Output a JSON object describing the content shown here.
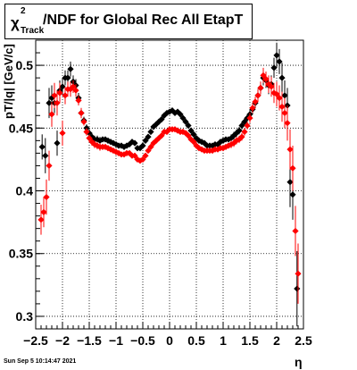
{
  "title": {
    "chi": "χ",
    "sup": "2",
    "sub": "Track",
    "rest": "/NDF for Global Rec All EtapT"
  },
  "timestamp": "Sun Sep  5 10:14:47 2021",
  "chart_data": {
    "type": "scatter",
    "xlabel": "η",
    "ylabel": "pT/|q| [GeV/c]",
    "xlim": [
      -2.5,
      2.5
    ],
    "ylim": [
      0.29,
      0.52
    ],
    "x_ticks": [
      "−2.5",
      "−2",
      "−1.5",
      "−1",
      "−0.5",
      "0",
      "0.5",
      "1",
      "1.5",
      "2",
      "2.5"
    ],
    "y_ticks": [
      "0.3",
      "0.35",
      "0.4",
      "0.45",
      "0.5"
    ],
    "grid": true,
    "colors": {
      "black_series": "#000000",
      "red_series": "#ff0000"
    },
    "series": [
      {
        "color": "black",
        "points": [
          [
            -2.38,
            0.435,
            0.01
          ],
          [
            -2.32,
            0.428,
            0.014
          ],
          [
            -2.25,
            0.47,
            0.012
          ],
          [
            -2.2,
            0.474,
            0.01
          ],
          [
            -2.15,
            0.47,
            0.008
          ],
          [
            -2.1,
            0.438,
            0.01
          ],
          [
            -2.05,
            0.48,
            0.008
          ],
          [
            -2.0,
            0.483,
            0.007
          ],
          [
            -1.95,
            0.49,
            0.006
          ],
          [
            -1.9,
            0.49,
            0.006
          ],
          [
            -1.85,
            0.497,
            0.006
          ],
          [
            -1.8,
            0.487,
            0.005
          ],
          [
            -1.75,
            0.484,
            0.005
          ],
          [
            -1.7,
            0.474,
            0.004
          ],
          [
            -1.65,
            0.462,
            0.004
          ],
          [
            -1.6,
            0.456,
            0.003
          ],
          [
            -1.55,
            0.45,
            0.003
          ],
          [
            -1.5,
            0.446,
            0.003
          ],
          [
            -1.45,
            0.443,
            0.003
          ],
          [
            -1.4,
            0.441,
            0.003
          ],
          [
            -1.35,
            0.441,
            0.003
          ],
          [
            -1.3,
            0.44,
            0.003
          ],
          [
            -1.25,
            0.441,
            0.002
          ],
          [
            -1.2,
            0.441,
            0.002
          ],
          [
            -1.15,
            0.44,
            0.002
          ],
          [
            -1.1,
            0.439,
            0.002
          ],
          [
            -1.05,
            0.438,
            0.002
          ],
          [
            -1.0,
            0.437,
            0.002
          ],
          [
            -0.95,
            0.436,
            0.002
          ],
          [
            -0.9,
            0.436,
            0.002
          ],
          [
            -0.85,
            0.435,
            0.002
          ],
          [
            -0.8,
            0.436,
            0.002
          ],
          [
            -0.75,
            0.437,
            0.002
          ],
          [
            -0.7,
            0.439,
            0.002
          ],
          [
            -0.65,
            0.438,
            0.002
          ],
          [
            -0.6,
            0.434,
            0.002
          ],
          [
            -0.55,
            0.434,
            0.002
          ],
          [
            -0.5,
            0.436,
            0.002
          ],
          [
            -0.45,
            0.44,
            0.002
          ],
          [
            -0.4,
            0.443,
            0.002
          ],
          [
            -0.35,
            0.447,
            0.002
          ],
          [
            -0.3,
            0.451,
            0.002
          ],
          [
            -0.25,
            0.453,
            0.002
          ],
          [
            -0.2,
            0.455,
            0.002
          ],
          [
            -0.15,
            0.457,
            0.002
          ],
          [
            -0.1,
            0.46,
            0.002
          ],
          [
            -0.05,
            0.462,
            0.002
          ],
          [
            0.0,
            0.463,
            0.002
          ],
          [
            0.05,
            0.464,
            0.002
          ],
          [
            0.1,
            0.462,
            0.002
          ],
          [
            0.15,
            0.463,
            0.002
          ],
          [
            0.2,
            0.461,
            0.002
          ],
          [
            0.25,
            0.458,
            0.002
          ],
          [
            0.3,
            0.455,
            0.002
          ],
          [
            0.35,
            0.452,
            0.002
          ],
          [
            0.4,
            0.448,
            0.002
          ],
          [
            0.45,
            0.445,
            0.002
          ],
          [
            0.5,
            0.442,
            0.002
          ],
          [
            0.55,
            0.44,
            0.002
          ],
          [
            0.6,
            0.439,
            0.002
          ],
          [
            0.65,
            0.438,
            0.002
          ],
          [
            0.7,
            0.436,
            0.002
          ],
          [
            0.75,
            0.436,
            0.002
          ],
          [
            0.8,
            0.436,
            0.002
          ],
          [
            0.85,
            0.437,
            0.002
          ],
          [
            0.9,
            0.437,
            0.002
          ],
          [
            0.95,
            0.439,
            0.002
          ],
          [
            1.0,
            0.44,
            0.002
          ],
          [
            1.05,
            0.441,
            0.002
          ],
          [
            1.1,
            0.441,
            0.002
          ],
          [
            1.15,
            0.442,
            0.003
          ],
          [
            1.2,
            0.444,
            0.003
          ],
          [
            1.25,
            0.446,
            0.003
          ],
          [
            1.3,
            0.448,
            0.003
          ],
          [
            1.35,
            0.452,
            0.003
          ],
          [
            1.4,
            0.455,
            0.003
          ],
          [
            1.45,
            0.458,
            0.003
          ],
          [
            1.5,
            0.461,
            0.004
          ],
          [
            1.55,
            0.465,
            0.004
          ],
          [
            1.6,
            0.47,
            0.004
          ],
          [
            1.65,
            0.476,
            0.005
          ],
          [
            1.7,
            0.482,
            0.005
          ],
          [
            1.75,
            0.49,
            0.006
          ],
          [
            1.8,
            0.488,
            0.006
          ],
          [
            1.85,
            0.484,
            0.007
          ],
          [
            1.9,
            0.485,
            0.007
          ],
          [
            1.95,
            0.498,
            0.008
          ],
          [
            2.0,
            0.508,
            0.01
          ],
          [
            2.05,
            0.503,
            0.01
          ],
          [
            2.1,
            0.49,
            0.012
          ],
          [
            2.15,
            0.476,
            0.012
          ],
          [
            2.2,
            0.468,
            0.014
          ],
          [
            2.25,
            0.407,
            0.02
          ],
          [
            2.3,
            0.397,
            0.02
          ],
          [
            2.38,
            0.322,
            0.03
          ]
        ]
      },
      {
        "color": "red",
        "points": [
          [
            -2.4,
            0.377,
            0.012
          ],
          [
            -2.35,
            0.383,
            0.012
          ],
          [
            -2.3,
            0.395,
            0.014
          ],
          [
            -2.25,
            0.42,
            0.012
          ],
          [
            -2.2,
            0.461,
            0.01
          ],
          [
            -2.15,
            0.476,
            0.01
          ],
          [
            -2.1,
            0.47,
            0.01
          ],
          [
            -2.05,
            0.478,
            0.008
          ],
          [
            -2.0,
            0.446,
            0.01
          ],
          [
            -1.95,
            0.476,
            0.007
          ],
          [
            -1.9,
            0.481,
            0.006
          ],
          [
            -1.85,
            0.481,
            0.006
          ],
          [
            -1.8,
            0.483,
            0.005
          ],
          [
            -1.75,
            0.48,
            0.005
          ],
          [
            -1.7,
            0.472,
            0.004
          ],
          [
            -1.65,
            0.462,
            0.004
          ],
          [
            -1.6,
            0.455,
            0.003
          ],
          [
            -1.55,
            0.447,
            0.003
          ],
          [
            -1.5,
            0.442,
            0.003
          ],
          [
            -1.45,
            0.439,
            0.003
          ],
          [
            -1.4,
            0.437,
            0.003
          ],
          [
            -1.35,
            0.436,
            0.003
          ],
          [
            -1.3,
            0.435,
            0.003
          ],
          [
            -1.25,
            0.435,
            0.002
          ],
          [
            -1.2,
            0.435,
            0.002
          ],
          [
            -1.15,
            0.434,
            0.002
          ],
          [
            -1.1,
            0.433,
            0.002
          ],
          [
            -1.05,
            0.432,
            0.002
          ],
          [
            -1.0,
            0.431,
            0.002
          ],
          [
            -0.95,
            0.43,
            0.002
          ],
          [
            -0.9,
            0.429,
            0.002
          ],
          [
            -0.85,
            0.429,
            0.002
          ],
          [
            -0.8,
            0.43,
            0.002
          ],
          [
            -0.75,
            0.43,
            0.002
          ],
          [
            -0.7,
            0.428,
            0.002
          ],
          [
            -0.65,
            0.428,
            0.002
          ],
          [
            -0.6,
            0.425,
            0.002
          ],
          [
            -0.55,
            0.424,
            0.002
          ],
          [
            -0.5,
            0.425,
            0.002
          ],
          [
            -0.45,
            0.428,
            0.002
          ],
          [
            -0.4,
            0.432,
            0.002
          ],
          [
            -0.35,
            0.435,
            0.002
          ],
          [
            -0.3,
            0.438,
            0.002
          ],
          [
            -0.25,
            0.44,
            0.002
          ],
          [
            -0.2,
            0.442,
            0.002
          ],
          [
            -0.15,
            0.444,
            0.002
          ],
          [
            -0.1,
            0.447,
            0.002
          ],
          [
            -0.05,
            0.447,
            0.002
          ],
          [
            0.0,
            0.449,
            0.002
          ],
          [
            0.05,
            0.449,
            0.002
          ],
          [
            0.1,
            0.449,
            0.002
          ],
          [
            0.15,
            0.448,
            0.002
          ],
          [
            0.2,
            0.447,
            0.002
          ],
          [
            0.25,
            0.447,
            0.002
          ],
          [
            0.3,
            0.446,
            0.002
          ],
          [
            0.35,
            0.444,
            0.002
          ],
          [
            0.4,
            0.441,
            0.002
          ],
          [
            0.45,
            0.439,
            0.002
          ],
          [
            0.5,
            0.436,
            0.002
          ],
          [
            0.55,
            0.434,
            0.002
          ],
          [
            0.6,
            0.433,
            0.002
          ],
          [
            0.65,
            0.432,
            0.002
          ],
          [
            0.7,
            0.432,
            0.002
          ],
          [
            0.75,
            0.432,
            0.002
          ],
          [
            0.8,
            0.432,
            0.002
          ],
          [
            0.85,
            0.433,
            0.002
          ],
          [
            0.9,
            0.433,
            0.002
          ],
          [
            0.95,
            0.434,
            0.002
          ],
          [
            1.0,
            0.434,
            0.002
          ],
          [
            1.05,
            0.435,
            0.002
          ],
          [
            1.1,
            0.436,
            0.002
          ],
          [
            1.15,
            0.437,
            0.003
          ],
          [
            1.2,
            0.438,
            0.003
          ],
          [
            1.25,
            0.44,
            0.003
          ],
          [
            1.3,
            0.441,
            0.003
          ],
          [
            1.35,
            0.443,
            0.003
          ],
          [
            1.4,
            0.447,
            0.003
          ],
          [
            1.45,
            0.452,
            0.003
          ],
          [
            1.5,
            0.458,
            0.004
          ],
          [
            1.55,
            0.466,
            0.004
          ],
          [
            1.6,
            0.471,
            0.004
          ],
          [
            1.65,
            0.476,
            0.005
          ],
          [
            1.7,
            0.482,
            0.005
          ],
          [
            1.75,
            0.492,
            0.006
          ],
          [
            1.8,
            0.489,
            0.006
          ],
          [
            1.85,
            0.485,
            0.007
          ],
          [
            1.9,
            0.483,
            0.008
          ],
          [
            1.95,
            0.478,
            0.008
          ],
          [
            2.0,
            0.477,
            0.01
          ],
          [
            2.05,
            0.474,
            0.01
          ],
          [
            2.1,
            0.467,
            0.012
          ],
          [
            2.15,
            0.462,
            0.012
          ],
          [
            2.2,
            0.454,
            0.014
          ],
          [
            2.25,
            0.433,
            0.016
          ],
          [
            2.3,
            0.418,
            0.018
          ],
          [
            2.35,
            0.368,
            0.02
          ],
          [
            2.4,
            0.334,
            0.024
          ]
        ]
      }
    ]
  }
}
